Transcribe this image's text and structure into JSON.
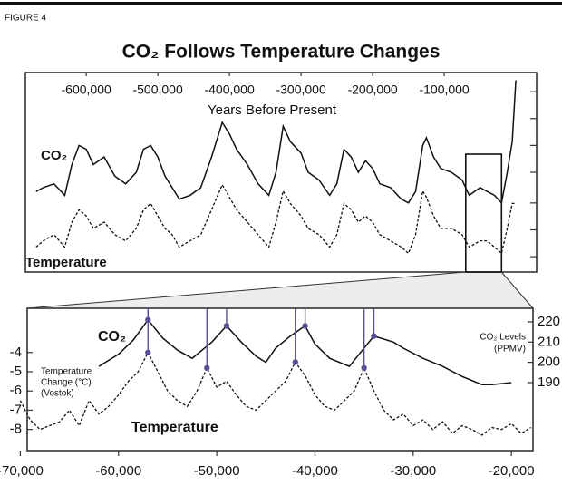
{
  "chart_data": [
    {
      "type": "line",
      "figure_label": "FIGURE 4",
      "title": "CO₂ Follows Temperature Changes",
      "xlabel": "Years Before Present",
      "xlim": [
        -685000,
        29000
      ],
      "xticks": [
        {
          "value": -600000,
          "label": "-600,000"
        },
        {
          "value": -500000,
          "label": "-500,000"
        },
        {
          "value": -400000,
          "label": "-400,000"
        },
        {
          "value": -300000,
          "label": "-300,000"
        },
        {
          "value": -200000,
          "label": "-200,000"
        },
        {
          "value": -100000,
          "label": "-100,000"
        }
      ],
      "ylim": [
        100,
        360
      ],
      "yticks": [
        120,
        155,
        190,
        230,
        265,
        300,
        335
      ],
      "y2lim": [
        -12,
        20
      ],
      "zoom_xrange": [
        -70000,
        -20000
      ],
      "x": [
        -670000,
        -660000,
        -645000,
        -630000,
        -620000,
        -610000,
        -600000,
        -590000,
        -575000,
        -560000,
        -545000,
        -530000,
        -520000,
        -510000,
        -500000,
        -490000,
        -480000,
        -470000,
        -455000,
        -440000,
        -425000,
        -410000,
        -400000,
        -390000,
        -375000,
        -360000,
        -345000,
        -335000,
        -325000,
        -315000,
        -300000,
        -290000,
        -275000,
        -260000,
        -250000,
        -240000,
        -230000,
        -220000,
        -210000,
        -200000,
        -190000,
        -175000,
        -160000,
        -150000,
        -140000,
        -130000,
        -125000,
        -115000,
        -105000,
        -90000,
        -75000,
        -65000,
        -50000,
        -40000,
        -30000,
        -20000,
        -12000,
        -5000,
        0
      ],
      "series": [
        {
          "name": "CO₂",
          "color": "#111111",
          "line_style": "solid",
          "axis": "y",
          "values": [
            205,
            210,
            215,
            200,
            240,
            265,
            260,
            240,
            250,
            225,
            215,
            230,
            260,
            265,
            250,
            225,
            210,
            195,
            200,
            210,
            250,
            295,
            280,
            260,
            240,
            215,
            200,
            230,
            290,
            270,
            255,
            230,
            220,
            200,
            215,
            260,
            250,
            230,
            245,
            235,
            215,
            210,
            195,
            190,
            205,
            265,
            275,
            250,
            235,
            230,
            220,
            200,
            210,
            205,
            200,
            190,
            230,
            270,
            350
          ]
        },
        {
          "name": "Temperature",
          "color": "#111111",
          "line_style": "dashed",
          "axis": "y2",
          "values": [
            -8,
            -7,
            -6,
            -8,
            -4,
            -2,
            -3,
            -5,
            -4,
            -6,
            -7,
            -5,
            -2,
            -1,
            -3,
            -5,
            -6,
            -8,
            -7,
            -6,
            -2,
            2,
            0,
            -2,
            -4,
            -6,
            -8,
            -4,
            1,
            -1,
            -3,
            -5,
            -6,
            -8,
            -6,
            -1,
            -2,
            -4,
            -3,
            -4,
            -6,
            -7,
            -8,
            -9,
            -6,
            1,
            0,
            -3,
            -5,
            -5,
            -6,
            -8,
            -7,
            -7,
            -8,
            -9,
            -5,
            -1,
            -1
          ]
        }
      ]
    },
    {
      "type": "line",
      "ylabel": [
        "Temperature",
        "Change (°C)",
        "(Vostok)"
      ],
      "y2label": [
        "CO₂ Levels",
        "(PPMV)"
      ],
      "xlim": [
        -69300,
        -17800
      ],
      "xticks": [
        {
          "value": -70000,
          "label": "-70,000"
        },
        {
          "value": -60000,
          "label": "-60,000"
        },
        {
          "value": -50000,
          "label": "-50,000"
        },
        {
          "value": -40000,
          "label": "-40,000"
        },
        {
          "value": -30000,
          "label": "-30,000"
        },
        {
          "value": -20000,
          "label": "-20,000"
        }
      ],
      "ylim": [
        -9.1,
        -1.7
      ],
      "yticks": [
        -4,
        -5,
        -6,
        -7,
        -8
      ],
      "y2lim": [
        156.4,
        226.7
      ],
      "y2ticks": [
        190,
        200,
        210,
        220
      ],
      "highlight_color": "#5a4e9c",
      "series": [
        {
          "name": "CO₂",
          "color": "#111111",
          "line_style": "solid",
          "axis": "y2",
          "x": [
            -62000,
            -60000,
            -58500,
            -57000,
            -55500,
            -54000,
            -52500,
            -50500,
            -49000,
            -47500,
            -46000,
            -45000,
            -44000,
            -42500,
            -41000,
            -40000,
            -38500,
            -36500,
            -35500,
            -34000,
            -32000,
            -31000,
            -29000,
            -27000,
            -25000,
            -23000,
            -22000,
            -20000
          ],
          "values": [
            198,
            204,
            211,
            221,
            212,
            206,
            202,
            210,
            218,
            210,
            203,
            200,
            207,
            213,
            218,
            209,
            202,
            198,
            204,
            213,
            210,
            207,
            202,
            198,
            193,
            189,
            189,
            190
          ],
          "highlight_x": [
            -57000,
            -49000,
            -41000,
            -34000
          ]
        },
        {
          "name": "Temperature",
          "color": "#111111",
          "line_style": "dashed",
          "axis": "y",
          "x": [
            -70000,
            -69000,
            -68000,
            -67000,
            -66000,
            -65000,
            -64000,
            -63000,
            -62000,
            -61000,
            -60000,
            -59000,
            -58000,
            -57000,
            -56000,
            -55000,
            -54000,
            -53000,
            -52000,
            -51000,
            -50000,
            -49000,
            -48000,
            -47000,
            -46000,
            -45000,
            -44000,
            -43000,
            -42000,
            -41000,
            -40000,
            -39000,
            -38000,
            -37000,
            -36000,
            -35000,
            -34000,
            -33000,
            -32000,
            -31000,
            -30000,
            -29000,
            -28000,
            -27000,
            -26000,
            -25000,
            -24000,
            -23000,
            -22000,
            -21000,
            -20000,
            -19000,
            -18000
          ],
          "values": [
            -6.5,
            -7.5,
            -8,
            -7.8,
            -7.6,
            -7,
            -7.8,
            -6.5,
            -7.2,
            -6.8,
            -6.2,
            -5.5,
            -5,
            -4,
            -5,
            -6,
            -6.5,
            -6.8,
            -6,
            -4.8,
            -5.8,
            -5.5,
            -6.2,
            -6.8,
            -7,
            -6.5,
            -6,
            -5.5,
            -4.5,
            -5.2,
            -6.2,
            -6.8,
            -7,
            -6.5,
            -6,
            -4.8,
            -6,
            -7,
            -7.5,
            -7.2,
            -7.8,
            -7.5,
            -8,
            -7.6,
            -8.2,
            -7.8,
            -8,
            -8.3,
            -7.9,
            -8,
            -7.7,
            -8.2,
            -7.9
          ],
          "highlight_x": [
            -57000,
            -51000,
            -42000,
            -35000
          ]
        }
      ]
    }
  ]
}
